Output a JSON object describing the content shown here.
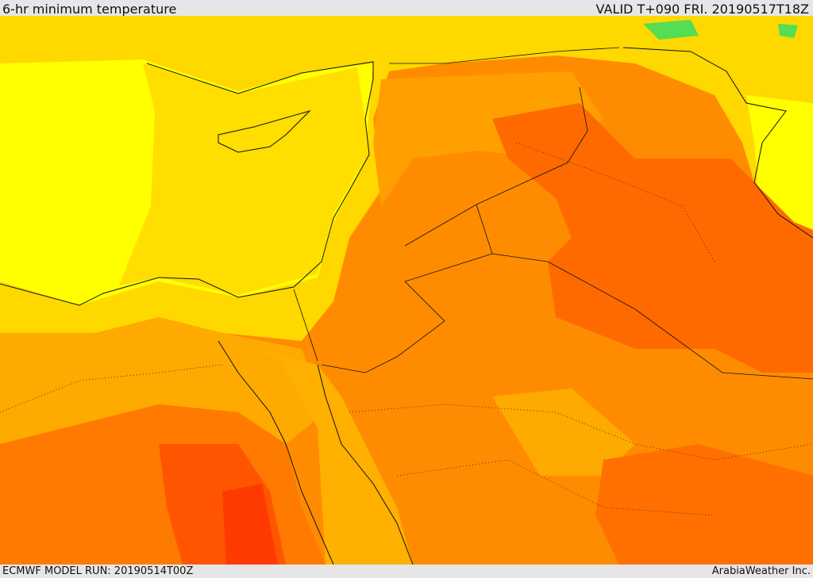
{
  "header": {
    "title": "6-hr minimum temperature",
    "valid": "VALID T+090 FRI. 20190517T18Z"
  },
  "footer": {
    "model_run": "ECMWF MODEL RUN: 20190514T00Z",
    "credit": "ArabiaWeather Inc."
  }
}
